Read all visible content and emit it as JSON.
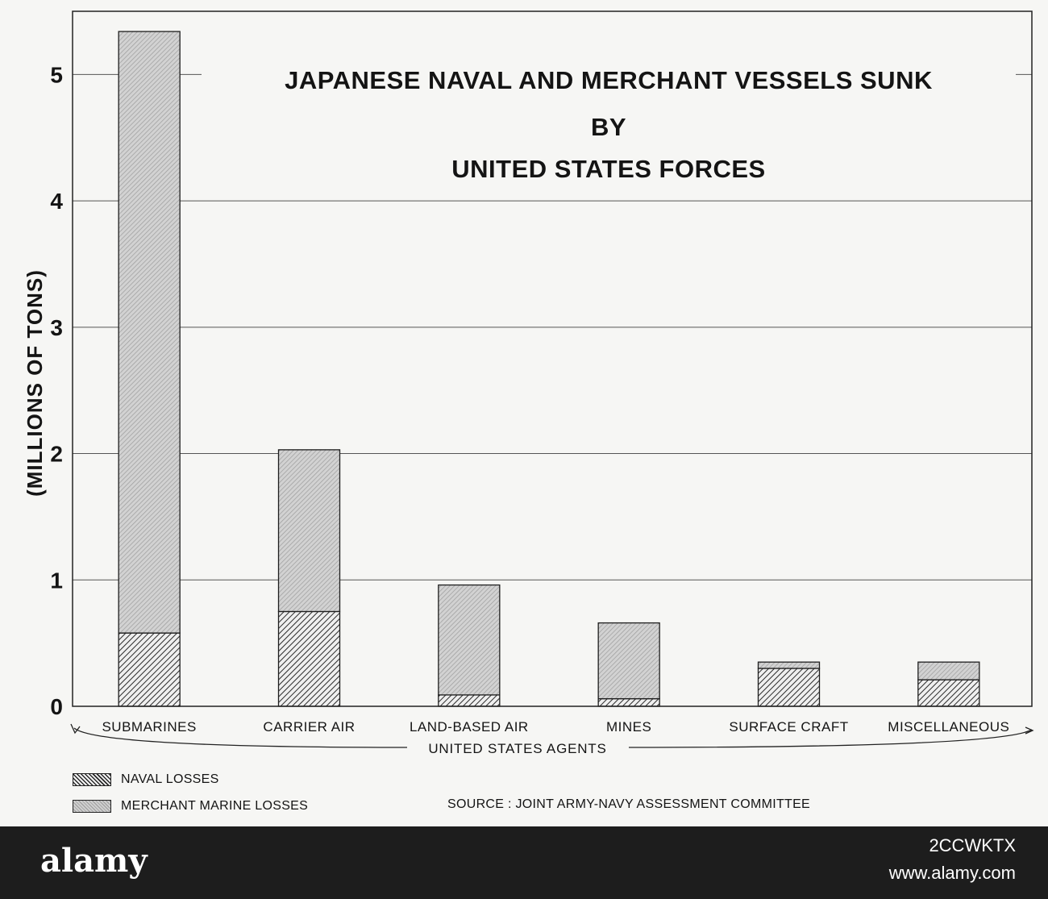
{
  "chart_data": {
    "type": "bar",
    "stacked": true,
    "title": [
      "JAPANESE NAVAL AND MERCHANT VESSELS SUNK",
      "BY",
      "UNITED STATES FORCES"
    ],
    "xlabel": "UNITED STATES AGENTS",
    "ylabel": "(MILLIONS OF TONS)",
    "ylim": [
      0,
      5.5
    ],
    "yticks": [
      0,
      1,
      2,
      3,
      4,
      5
    ],
    "grid": true,
    "legend_position": "bottom-left",
    "categories": [
      "SUBMARINES",
      "CARRIER AIR",
      "LAND-BASED AIR",
      "MINES",
      "SURFACE CRAFT",
      "MISCELLANEOUS"
    ],
    "series": [
      {
        "name": "NAVAL LOSSES",
        "values": [
          0.58,
          0.75,
          0.09,
          0.06,
          0.3,
          0.21
        ]
      },
      {
        "name": "MERCHANT MARINE LOSSES",
        "values": [
          4.76,
          1.28,
          0.87,
          0.6,
          0.05,
          0.14
        ]
      }
    ],
    "source": "SOURCE : JOINT ARMY-NAVY ASSESSMENT COMMITTEE"
  },
  "watermark": {
    "logo": "alamy",
    "image_id": "2CCWKTX",
    "url": "www.alamy.com"
  }
}
